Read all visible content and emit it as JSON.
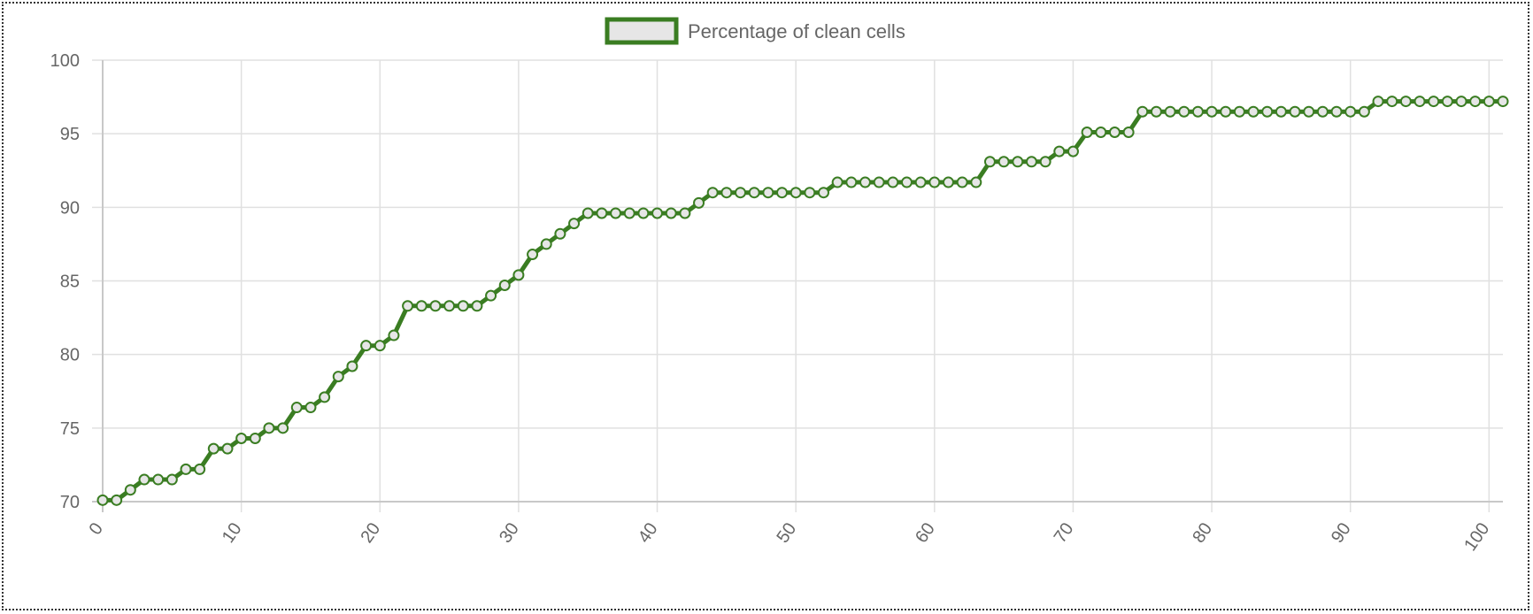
{
  "chart_data": {
    "type": "line",
    "title": "",
    "xlabel": "",
    "ylabel": "",
    "xlim": [
      0,
      101
    ],
    "ylim": [
      70,
      100
    ],
    "x_ticks": [
      0,
      10,
      20,
      30,
      40,
      50,
      60,
      70,
      80,
      90,
      100
    ],
    "x_tick_labels": [
      "0",
      "10",
      "20",
      "30",
      "40",
      "50",
      "60",
      "70",
      "80",
      "90",
      "100"
    ],
    "y_ticks": [
      70,
      75,
      80,
      85,
      90,
      95,
      100
    ],
    "y_tick_labels": [
      "70",
      "75",
      "80",
      "85",
      "90",
      "95",
      "100"
    ],
    "grid": true,
    "legend_position": "top-center",
    "series": [
      {
        "name": "Percentage of clean cells",
        "color": "#3a7d22",
        "point_fill": "#e6e6e6",
        "values": [
          70.1,
          70.1,
          70.8,
          71.5,
          71.5,
          71.5,
          72.2,
          72.2,
          73.6,
          73.6,
          74.3,
          74.3,
          75.0,
          75.0,
          76.4,
          76.4,
          77.1,
          78.5,
          79.2,
          80.6,
          80.6,
          81.3,
          83.3,
          83.3,
          83.3,
          83.3,
          83.3,
          83.3,
          84.0,
          84.7,
          85.4,
          86.8,
          87.5,
          88.2,
          88.9,
          89.6,
          89.6,
          89.6,
          89.6,
          89.6,
          89.6,
          89.6,
          89.6,
          90.3,
          91.0,
          91.0,
          91.0,
          91.0,
          91.0,
          91.0,
          91.0,
          91.0,
          91.0,
          91.7,
          91.7,
          91.7,
          91.7,
          91.7,
          91.7,
          91.7,
          91.7,
          91.7,
          91.7,
          91.7,
          93.1,
          93.1,
          93.1,
          93.1,
          93.1,
          93.8,
          93.8,
          95.1,
          95.1,
          95.1,
          95.1,
          96.5,
          96.5,
          96.5,
          96.5,
          96.5,
          96.5,
          96.5,
          96.5,
          96.5,
          96.5,
          96.5,
          96.5,
          96.5,
          96.5,
          96.5,
          96.5,
          96.5,
          97.2,
          97.2,
          97.2,
          97.2,
          97.2,
          97.2,
          97.2,
          97.2,
          97.2,
          97.2
        ]
      }
    ]
  }
}
